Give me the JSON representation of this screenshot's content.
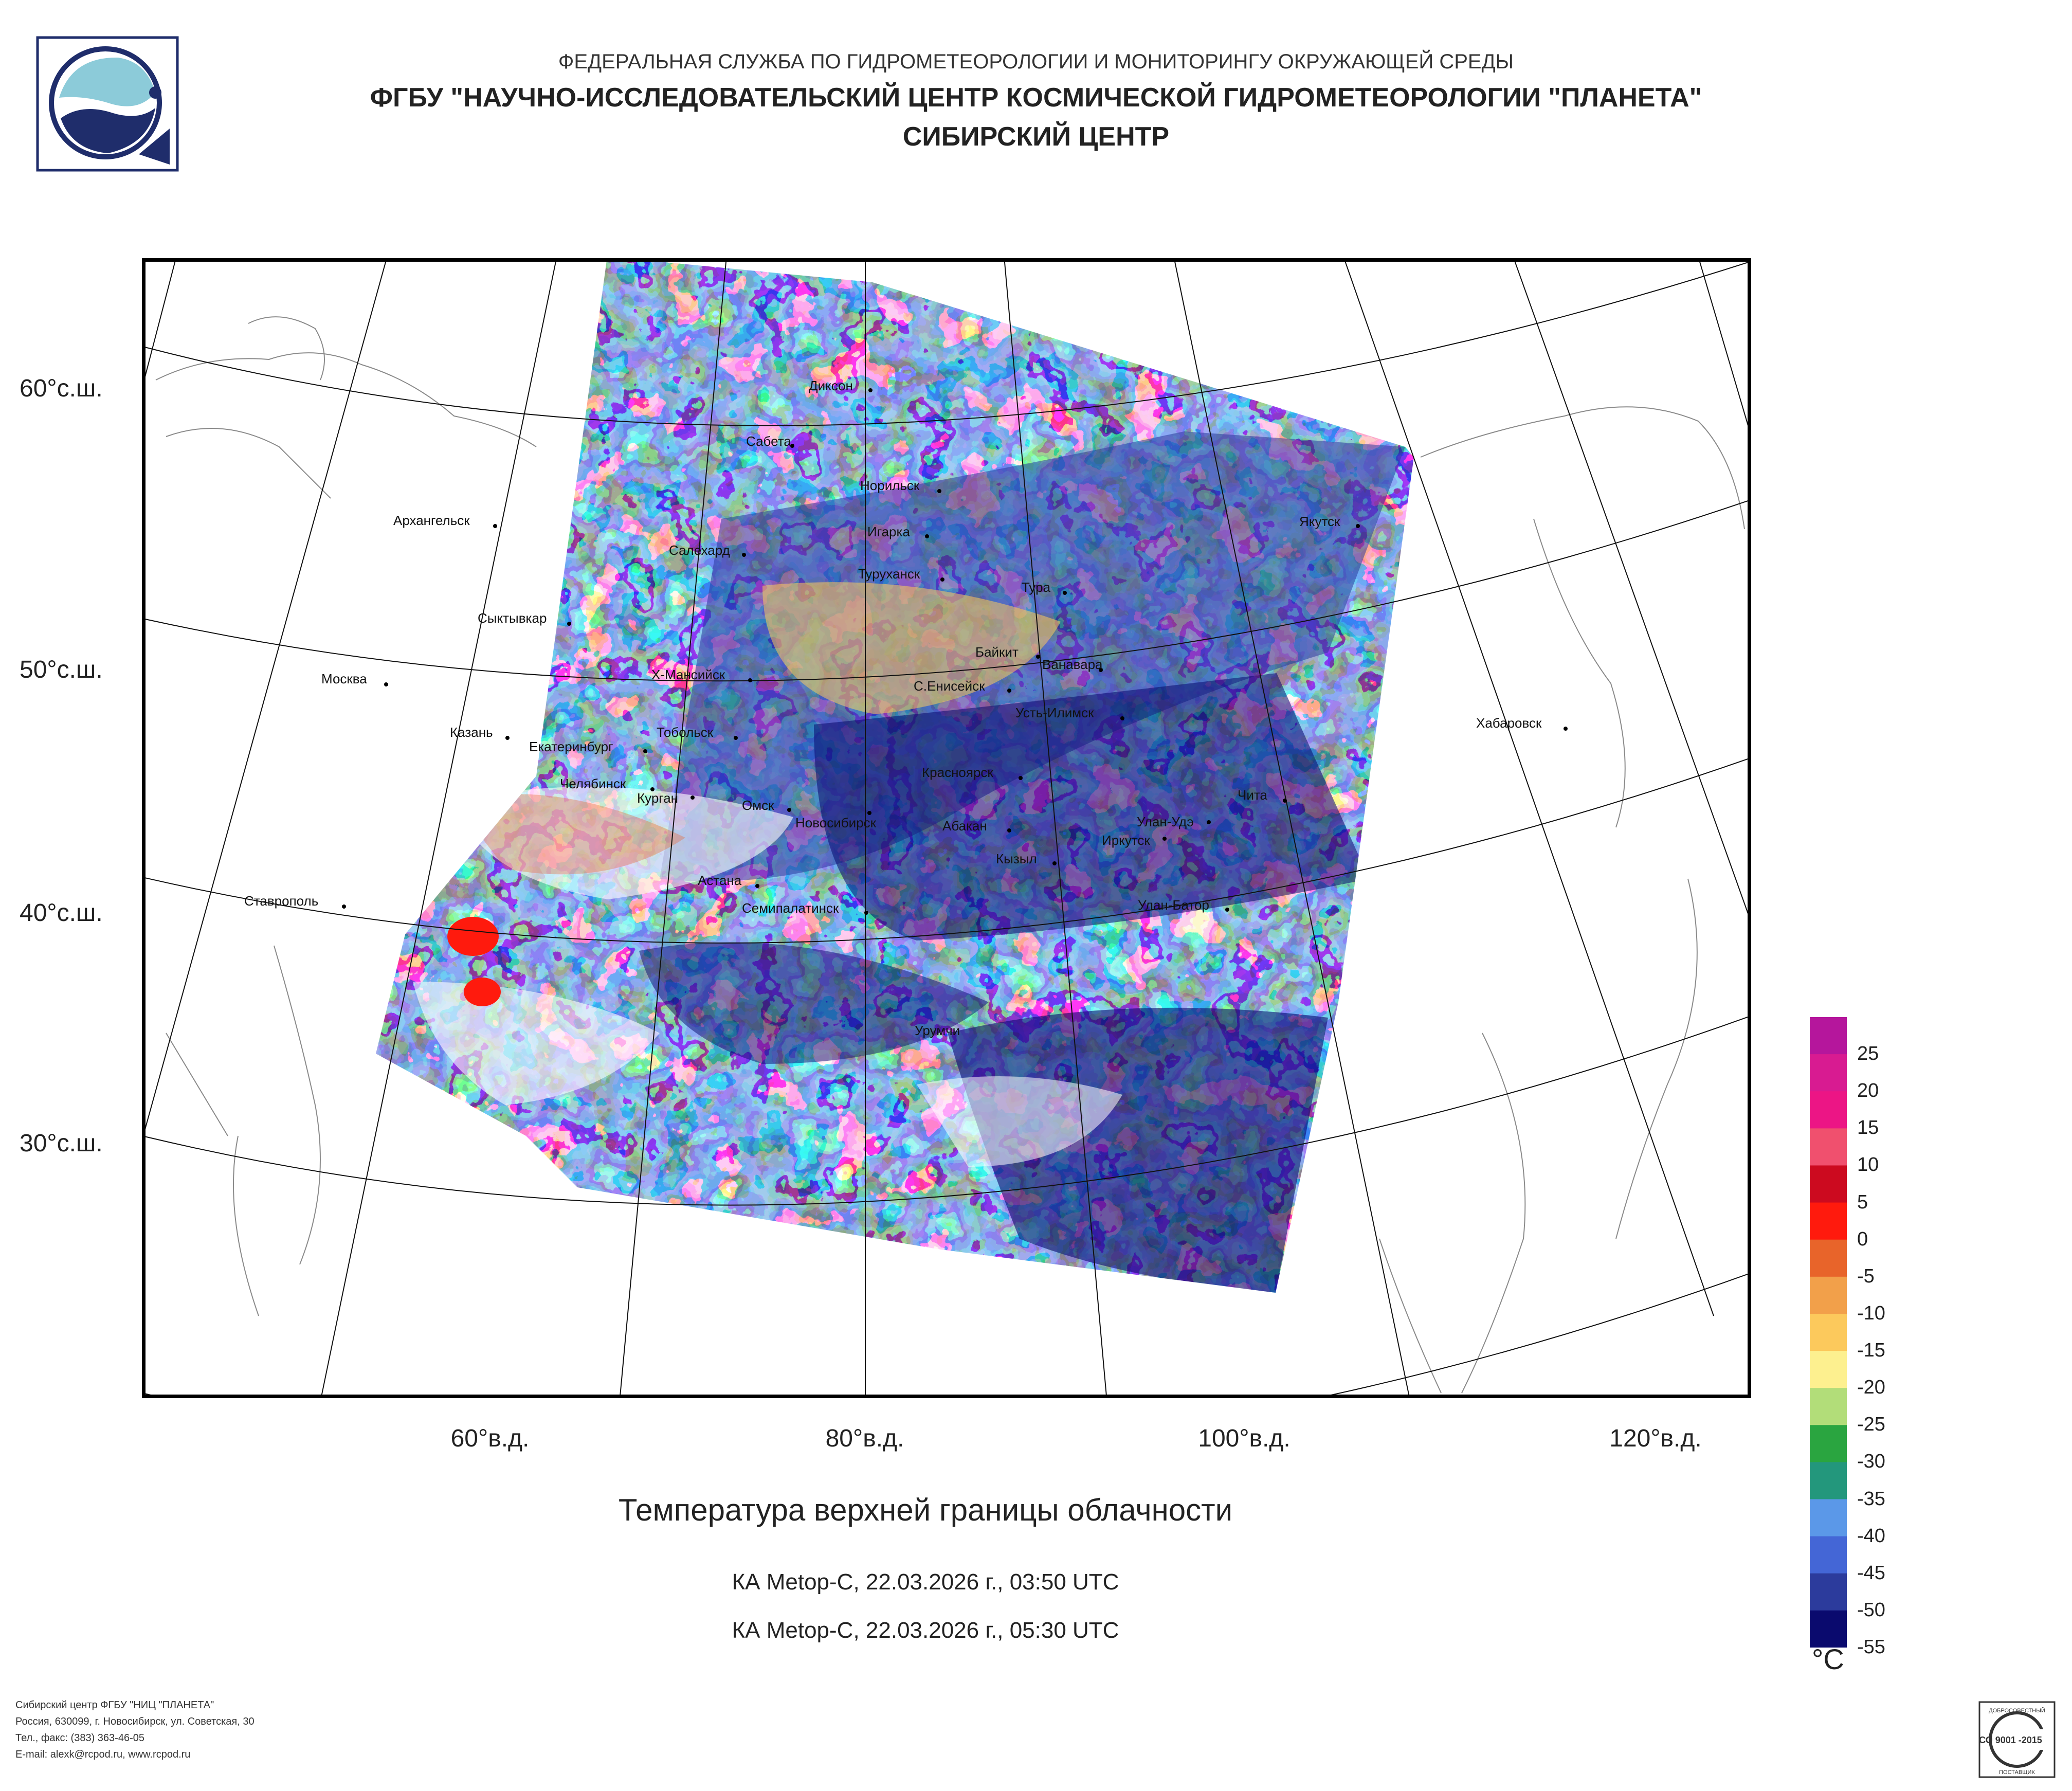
{
  "header": {
    "line1": "ФЕДЕРАЛЬНАЯ СЛУЖБА ПО ГИДРОМЕТЕОРОЛОГИИ И МОНИТОРИНГУ ОКРУЖАЮЩЕЙ СРЕДЫ",
    "line2": "ФГБУ \"НАУЧНО-ИССЛЕДОВАТЕЛЬСКИЙ ЦЕНТР КОСМИЧЕСКОЙ ГИДРОМЕТЕОРОЛОГИИ \"ПЛАНЕТА\"",
    "line3": "СИБИРСКИЙ ЦЕНТР"
  },
  "map": {
    "latitude_labels": [
      "60°с.ш.",
      "50°с.ш.",
      "40°с.ш.",
      "30°с.ш."
    ],
    "longitude_labels": [
      "60°в.д.",
      "80°в.д.",
      "100°в.д.",
      "120°в.д."
    ],
    "cities": [
      {
        "name": "Диксон"
      },
      {
        "name": "Сабета"
      },
      {
        "name": "Норильск"
      },
      {
        "name": "Игарка"
      },
      {
        "name": "Туруханск"
      },
      {
        "name": "Архангельск"
      },
      {
        "name": "Салехард"
      },
      {
        "name": "Тура"
      },
      {
        "name": "Якутск"
      },
      {
        "name": "Сыктывкар"
      },
      {
        "name": "Байкит"
      },
      {
        "name": "Ванавара"
      },
      {
        "name": "Москва"
      },
      {
        "name": "Х-Мансийск"
      },
      {
        "name": "С.Енисейск"
      },
      {
        "name": "Усть-Илимск"
      },
      {
        "name": "Казань"
      },
      {
        "name": "Тобольск"
      },
      {
        "name": "Екатеринбург"
      },
      {
        "name": "Хабаровск"
      },
      {
        "name": "Красноярск"
      },
      {
        "name": "Челябинск"
      },
      {
        "name": "Курган"
      },
      {
        "name": "Чита"
      },
      {
        "name": "Омск"
      },
      {
        "name": "Новосибирск"
      },
      {
        "name": "Абакан"
      },
      {
        "name": "Улан-Удэ"
      },
      {
        "name": "Иркутск"
      },
      {
        "name": "Кызыл"
      },
      {
        "name": "Астана"
      },
      {
        "name": "Ставрополь"
      },
      {
        "name": "Семипалатинск"
      },
      {
        "name": "Улан-Батор"
      },
      {
        "name": "Урумчи"
      }
    ]
  },
  "title": "Температура верхней границы облачности",
  "passes": [
    "КА Metop-C, 22.03.2026 г., 03:50 UTC",
    "КА Metop-C, 22.03.2026 г., 05:30 UTC"
  ],
  "legend": {
    "unit": "°C",
    "ticks": [
      "25",
      "20",
      "15",
      "10",
      "5",
      "0",
      "-5",
      "-10",
      "-15",
      "-20",
      "-25",
      "-30",
      "-35",
      "-40",
      "-45",
      "-50",
      "-55"
    ],
    "colors": [
      "#b5169c",
      "#d81b91",
      "#ec1585",
      "#f0506e",
      "#cc0a1f",
      "#ff1a0d",
      "#e8642a",
      "#f2a04a",
      "#fcc95c",
      "#fdf08f",
      "#b2dd79",
      "#2aa540",
      "#23977c",
      "#5b98e8",
      "#4466d6",
      "#2c3b9c",
      "#0a0a6e"
    ]
  },
  "footer": {
    "line1": "Сибирский центр ФГБУ \"НИЦ \"ПЛАНЕТА\"",
    "line2": "Россия, 630099, г. Новосибирск, ул. Советская, 30",
    "line3": "Тел., факс: (383) 363-46-05",
    "line4": "E-mail: alexk@rcpod.ru, www.rcpod.ru"
  },
  "certificate": {
    "top": "ДОБРОСОВЕСТНЫЙ",
    "middle": "ИСО 9001 -2015",
    "bottom": "ПОСТАВЩИК"
  }
}
